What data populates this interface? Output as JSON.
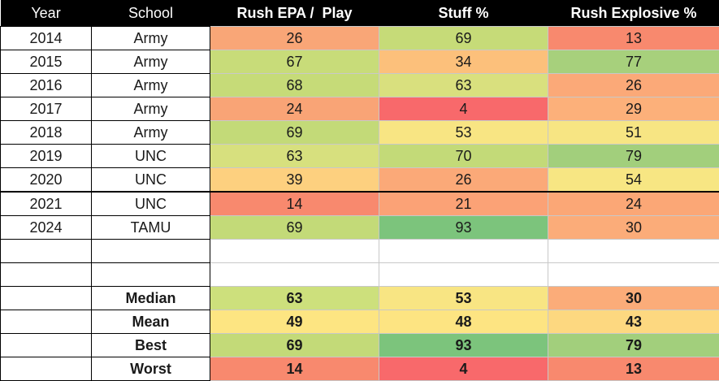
{
  "table": {
    "headers": [
      "Year",
      "School",
      "Rush EPA /  Play",
      "Stuff %",
      "Rush Explosive %"
    ],
    "rows": [
      {
        "year": "2014",
        "school": "Army",
        "epa": "26",
        "stuff": "69",
        "expl": "13",
        "epa_color": "#f9a677",
        "stuff_color": "#c6db78",
        "expl_color": "#f8896e"
      },
      {
        "year": "2015",
        "school": "Army",
        "epa": "67",
        "stuff": "34",
        "expl": "77",
        "epa_color": "#c8dc79",
        "stuff_color": "#fcc07b",
        "expl_color": "#a7d07c"
      },
      {
        "year": "2016",
        "school": "Army",
        "epa": "68",
        "stuff": "63",
        "expl": "26",
        "epa_color": "#c6db78",
        "stuff_color": "#d9e07e",
        "expl_color": "#fba978"
      },
      {
        "year": "2017",
        "school": "Army",
        "epa": "24",
        "stuff": "4",
        "expl": "29",
        "epa_color": "#f9a476",
        "stuff_color": "#f8696b",
        "expl_color": "#fcb07a"
      },
      {
        "year": "2018",
        "school": "Army",
        "epa": "69",
        "stuff": "53",
        "expl": "51",
        "epa_color": "#c3da78",
        "stuff_color": "#f8e583",
        "expl_color": "#f7e583"
      },
      {
        "year": "2019",
        "school": "UNC",
        "epa": "63",
        "stuff": "70",
        "expl": "79",
        "epa_color": "#d7e07e",
        "stuff_color": "#c3da78",
        "expl_color": "#a2cf7c"
      },
      {
        "year": "2020",
        "school": "UNC",
        "epa": "39",
        "stuff": "26",
        "expl": "54",
        "epa_color": "#fdd07f",
        "stuff_color": "#fba978",
        "expl_color": "#f7e683"
      },
      {
        "year": "2021",
        "school": "UNC",
        "epa": "14",
        "stuff": "21",
        "expl": "24",
        "epa_color": "#f8896e",
        "stuff_color": "#fba276",
        "expl_color": "#fba776"
      },
      {
        "year": "2024",
        "school": "TAMU",
        "epa": "69",
        "stuff": "93",
        "expl": "30",
        "epa_color": "#c3da78",
        "stuff_color": "#7cc47c",
        "expl_color": "#fbac79"
      }
    ],
    "summary": [
      {
        "label": "Median",
        "epa": "63",
        "stuff": "53",
        "expl": "30",
        "epa_color": "#cde07c",
        "stuff_color": "#f8e583",
        "expl_color": "#fbac79"
      },
      {
        "label": "Mean",
        "epa": "49",
        "stuff": "48",
        "expl": "43",
        "epa_color": "#fde582",
        "stuff_color": "#fde482",
        "expl_color": "#fdd880"
      },
      {
        "label": "Best",
        "epa": "69",
        "stuff": "93",
        "expl": "79",
        "epa_color": "#c3da78",
        "stuff_color": "#7cc47c",
        "expl_color": "#a2cf7c"
      },
      {
        "label": "Worst",
        "epa": "14",
        "stuff": "4",
        "expl": "13",
        "epa_color": "#f8896e",
        "stuff_color": "#f8696b",
        "expl_color": "#f8896e"
      }
    ]
  }
}
